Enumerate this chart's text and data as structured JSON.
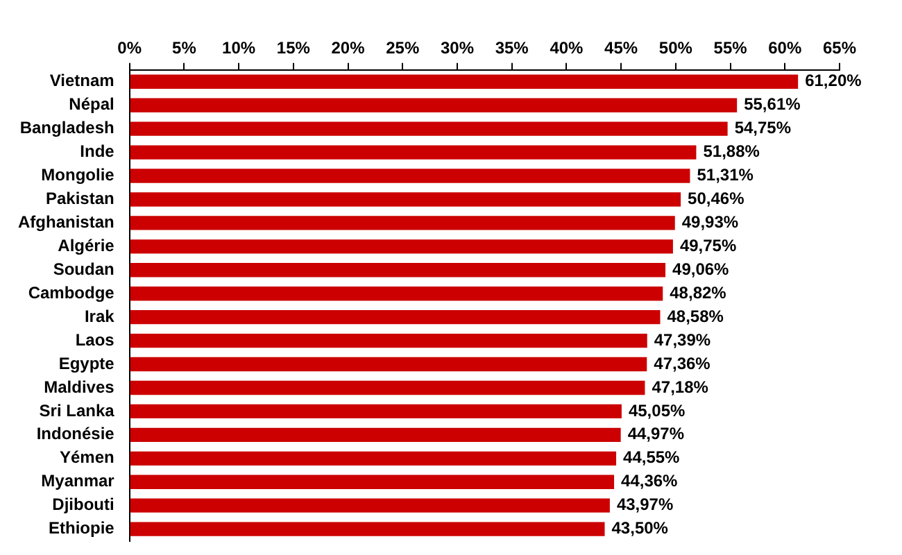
{
  "chart_data": {
    "type": "bar",
    "orientation": "horizontal",
    "categories": [
      "Vietnam",
      "Népal",
      "Bangladesh",
      "Inde",
      "Mongolie",
      "Pakistan",
      "Afghanistan",
      "Algérie",
      "Soudan",
      "Cambodge",
      "Irak",
      "Laos",
      "Egypte",
      "Maldives",
      "Sri Lanka",
      "Indonésie",
      "Yémen",
      "Myanmar",
      "Djibouti",
      "Ethiopie"
    ],
    "values": [
      61.2,
      55.61,
      54.75,
      51.88,
      51.31,
      50.46,
      49.93,
      49.75,
      49.06,
      48.82,
      48.58,
      47.39,
      47.36,
      47.18,
      45.05,
      44.97,
      44.55,
      44.36,
      43.97,
      43.5
    ],
    "value_labels": [
      "61,20%",
      "55,61%",
      "54,75%",
      "51,88%",
      "51,31%",
      "50,46%",
      "49,93%",
      "49,75%",
      "49,06%",
      "48,82%",
      "48,58%",
      "47,39%",
      "47,36%",
      "47,18%",
      "45,05%",
      "44,97%",
      "44,55%",
      "44,36%",
      "43,97%",
      "43,50%"
    ],
    "color": "#cc0000",
    "xlim": [
      0,
      65
    ],
    "xticks": [
      {
        "value": 0,
        "label": "0%"
      },
      {
        "value": 5,
        "label": "5%"
      },
      {
        "value": 10,
        "label": "10%"
      },
      {
        "value": 15,
        "label": "15%"
      },
      {
        "value": 20,
        "label": "20%"
      },
      {
        "value": 25,
        "label": "25%"
      },
      {
        "value": 30,
        "label": "30%"
      },
      {
        "value": 35,
        "label": "35%"
      },
      {
        "value": 40,
        "label": "40%"
      },
      {
        "value": 45,
        "label": "45%"
      },
      {
        "value": 50,
        "label": "50%"
      },
      {
        "value": 55,
        "label": "55%"
      },
      {
        "value": 60,
        "label": "60%"
      },
      {
        "value": 65,
        "label": "65%"
      }
    ],
    "grid": false,
    "legend": false
  }
}
